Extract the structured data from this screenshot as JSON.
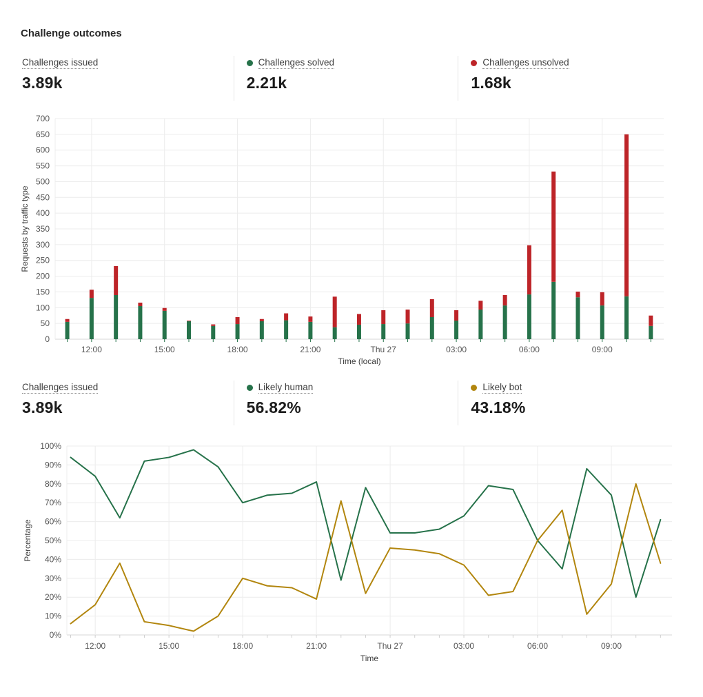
{
  "title": "Challenge outcomes",
  "colors": {
    "green": "#26724a",
    "red": "#bd2428",
    "gold": "#b2860e"
  },
  "stats_row1": [
    {
      "label": "Challenges issued",
      "value": "3.89k",
      "dot": null
    },
    {
      "label": "Challenges solved",
      "value": "2.21k",
      "dot": "green"
    },
    {
      "label": "Challenges unsolved",
      "value": "1.68k",
      "dot": "red"
    }
  ],
  "stats_row2": [
    {
      "label": "Challenges issued",
      "value": "3.89k",
      "dot": null
    },
    {
      "label": "Likely human",
      "value": "56.82%",
      "dot": "green"
    },
    {
      "label": "Likely bot",
      "value": "43.18%",
      "dot": "gold"
    }
  ],
  "chart_data": [
    {
      "type": "bar",
      "stacked": true,
      "title": "",
      "xlabel": "Time (local)",
      "ylabel": "Requests by traffic type",
      "ylim": [
        0,
        700
      ],
      "ytick_step": 50,
      "grid": "horizontal every 50, vertical every 3h",
      "legend_position": "none (legend shown as stat dots above)",
      "categories": [
        "11:00",
        "12:00",
        "13:00",
        "14:00",
        "15:00",
        "16:00",
        "17:00",
        "18:00",
        "19:00",
        "20:00",
        "21:00",
        "22:00",
        "23:00",
        "Thu 27 00:00",
        "01:00",
        "02:00",
        "03:00",
        "04:00",
        "05:00",
        "06:00",
        "07:00",
        "08:00",
        "09:00",
        "10:00",
        "11:00"
      ],
      "tick_indices": [
        1,
        4,
        7,
        10,
        13,
        16,
        19,
        22
      ],
      "tick_labels": [
        "12:00",
        "15:00",
        "18:00",
        "21:00",
        "Thu 27",
        "03:00",
        "06:00",
        "09:00"
      ],
      "series": [
        {
          "name": "Challenges solved",
          "color": "green",
          "values": [
            55,
            131,
            140,
            105,
            90,
            57,
            42,
            48,
            57,
            60,
            55,
            38,
            46,
            48,
            50,
            70,
            59,
            94,
            107,
            142,
            182,
            133,
            107,
            136,
            42
          ]
        },
        {
          "name": "Challenges unsolved",
          "color": "red",
          "values": [
            9,
            26,
            92,
            11,
            9,
            2,
            5,
            22,
            7,
            22,
            17,
            97,
            34,
            44,
            44,
            57,
            33,
            28,
            33,
            156,
            350,
            18,
            42,
            514,
            33
          ]
        }
      ]
    },
    {
      "type": "line",
      "title": "",
      "xlabel": "Time",
      "ylabel": "Percentage",
      "ylim": [
        0,
        100
      ],
      "ytick_step": 10,
      "ytick_suffix": "%",
      "grid": "horizontal every 10%, vertical every 3h",
      "legend_position": "none (legend shown as stat dots above)",
      "categories": [
        "11:00",
        "12:00",
        "13:00",
        "14:00",
        "15:00",
        "16:00",
        "17:00",
        "18:00",
        "19:00",
        "20:00",
        "21:00",
        "22:00",
        "23:00",
        "Thu 27 00:00",
        "01:00",
        "02:00",
        "03:00",
        "04:00",
        "05:00",
        "06:00",
        "07:00",
        "08:00",
        "09:00",
        "10:00",
        "11:00"
      ],
      "tick_indices": [
        1,
        4,
        7,
        10,
        13,
        16,
        19,
        22
      ],
      "tick_labels": [
        "12:00",
        "15:00",
        "18:00",
        "21:00",
        "Thu 27",
        "03:00",
        "06:00",
        "09:00"
      ],
      "series": [
        {
          "name": "Likely human",
          "color": "green",
          "values": [
            94,
            84,
            62,
            92,
            94,
            98,
            89,
            70,
            74,
            75,
            81,
            29,
            78,
            54,
            54,
            56,
            63,
            79,
            77,
            50,
            35,
            88,
            74,
            20,
            61
          ]
        },
        {
          "name": "Likely bot",
          "color": "gold",
          "values": [
            6,
            16,
            38,
            7,
            5,
            2,
            10,
            30,
            26,
            25,
            19,
            71,
            22,
            46,
            45,
            43,
            37,
            21,
            23,
            50,
            66,
            11,
            27,
            80,
            38
          ]
        }
      ]
    }
  ]
}
